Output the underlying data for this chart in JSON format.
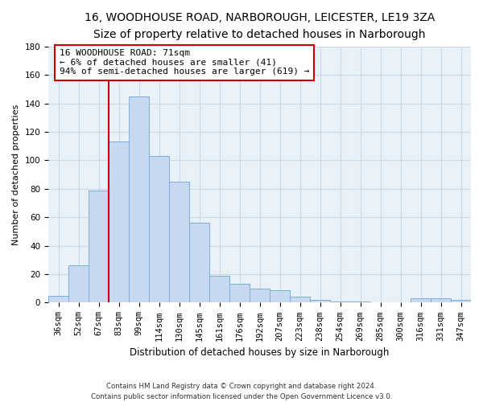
{
  "title_line1": "16, WOODHOUSE ROAD, NARBOROUGH, LEICESTER, LE19 3ZA",
  "title_line2": "Size of property relative to detached houses in Narborough",
  "xlabel": "Distribution of detached houses by size in Narborough",
  "ylabel": "Number of detached properties",
  "categories": [
    "36sqm",
    "52sqm",
    "67sqm",
    "83sqm",
    "99sqm",
    "114sqm",
    "130sqm",
    "145sqm",
    "161sqm",
    "176sqm",
    "192sqm",
    "207sqm",
    "223sqm",
    "238sqm",
    "254sqm",
    "269sqm",
    "285sqm",
    "300sqm",
    "316sqm",
    "331sqm",
    "347sqm"
  ],
  "values": [
    5,
    26,
    79,
    113,
    145,
    103,
    85,
    56,
    19,
    13,
    10,
    9,
    4,
    2,
    1,
    1,
    0,
    0,
    3,
    3,
    2
  ],
  "bar_color": "#c6d9f0",
  "bar_edge_color": "#7aaedb",
  "vline_color": "#cc0000",
  "vline_x": 2.5,
  "annotation_text": "16 WOODHOUSE ROAD: 71sqm\n← 6% of detached houses are smaller (41)\n94% of semi-detached houses are larger (619) →",
  "annotation_box_color": "#ffffff",
  "annotation_box_edge": "#cc0000",
  "ylim": [
    0,
    180
  ],
  "yticks": [
    0,
    20,
    40,
    60,
    80,
    100,
    120,
    140,
    160,
    180
  ],
  "grid_color": "#ccd9e8",
  "bg_color": "#e8f0f8",
  "footnote1": "Contains HM Land Registry data © Crown copyright and database right 2024.",
  "footnote2": "Contains public sector information licensed under the Open Government Licence v3.0.",
  "title_fontsize": 10,
  "subtitle_fontsize": 9,
  "ylabel_fontsize": 8,
  "xlabel_fontsize": 8.5,
  "tick_fontsize": 7.5,
  "annot_fontsize": 8
}
